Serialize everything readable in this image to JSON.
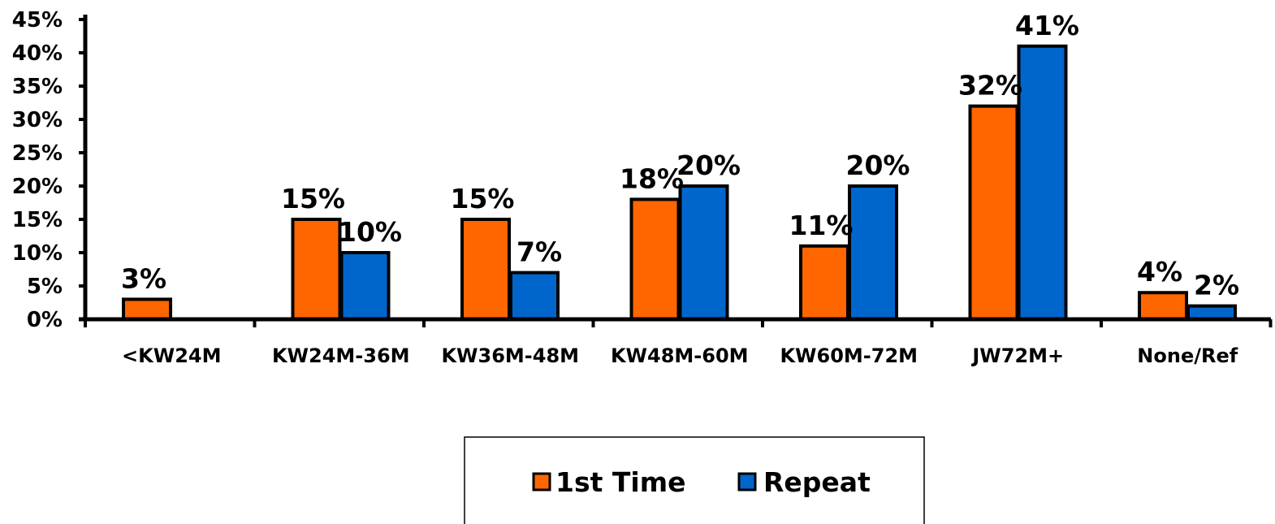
{
  "chart_data": {
    "type": "bar",
    "categories": [
      "<KW24M",
      "KW24M-36M",
      "KW36M-48M",
      "KW48M-60M",
      "KW60M-72M",
      "JW72M+",
      "None/Ref"
    ],
    "series": [
      {
        "name": "1st Time",
        "color": "#FF6600",
        "values": [
          3,
          15,
          15,
          18,
          11,
          32,
          4
        ],
        "labels": [
          "3%",
          "15%",
          "15%",
          "18%",
          "11%",
          "32%",
          "4%"
        ]
      },
      {
        "name": "Repeat",
        "color": "#0066CC",
        "values": [
          null,
          10,
          7,
          20,
          20,
          41,
          2
        ],
        "labels": [
          null,
          "10%",
          "7%",
          "20%",
          "20%",
          "41%",
          "2%"
        ]
      }
    ],
    "ylim": [
      0,
      45
    ],
    "yticks": [
      0,
      5,
      10,
      15,
      20,
      25,
      30,
      35,
      40,
      45
    ],
    "ytick_labels": [
      "0%",
      "5%",
      "10%",
      "15%",
      "20%",
      "25%",
      "30%",
      "35%",
      "40%",
      "45%"
    ],
    "grid": false,
    "legend_position": "bottom"
  }
}
